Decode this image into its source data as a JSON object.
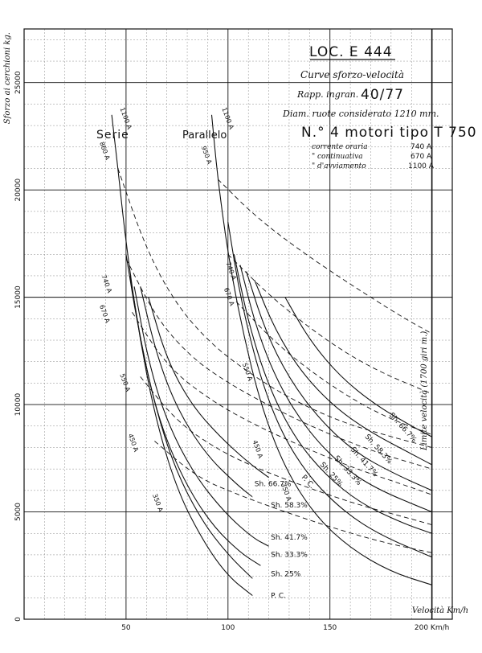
{
  "header": {
    "title": "LOC. E 444",
    "subtitle": "Curve sforzo-velocità",
    "ratio_label": "Rapp. ingran.",
    "ratio_value": "40/77",
    "wheel_label": "Diam. ruote considerato 1210 mm.",
    "motors_label": "N.° 4 motori tipo T 750",
    "currents": [
      {
        "label": "corrente oraria",
        "value": "740 A"
      },
      {
        "label": "\"  continuativa",
        "value": "670 A"
      },
      {
        "label": "\"  d'avviamento",
        "value": "1100 A"
      }
    ],
    "serie": "Serie",
    "parallelo": "Parallelo",
    "limit_label": "Limite velocità (1700 giri m.)"
  },
  "chart_data": {
    "type": "line",
    "ylabel": "Sforzo ai cerchioni kg.",
    "xlabel": "Velocità Km/h",
    "xlim": [
      0,
      210
    ],
    "ylim": [
      0,
      27500
    ],
    "xticks": [
      {
        "v": 50,
        "t": "50"
      },
      {
        "v": 100,
        "t": "100"
      },
      {
        "v": 150,
        "t": "150"
      },
      {
        "v": 200,
        "t": "200 Km/h"
      }
    ],
    "yticks": [
      {
        "v": 0,
        "t": "0"
      },
      {
        "v": 5000,
        "t": "5000"
      },
      {
        "v": 10000,
        "t": "10000"
      },
      {
        "v": 15000,
        "t": "15000"
      },
      {
        "v": 20000,
        "t": "20000"
      },
      {
        "v": 25000,
        "t": "25000"
      }
    ],
    "grid": true,
    "speed_limit": 200,
    "series_labels": [
      {
        "text": "Sh. 66.7%",
        "x": 113,
        "y": 6200
      },
      {
        "text": "Sh. 58.3%",
        "x": 121,
        "y": 5200
      },
      {
        "text": "Sh. 41.7%",
        "x": 121,
        "y": 3700
      },
      {
        "text": "Sh. 33.3%",
        "x": 121,
        "y": 2900
      },
      {
        "text": "Sh. 25%",
        "x": 121,
        "y": 2000
      },
      {
        "text": "P. C.",
        "x": 121,
        "y": 1000
      },
      {
        "text": "Sh. 66.7%",
        "x": 179,
        "y": 9500
      },
      {
        "text": "Sh. 58.3%",
        "x": 167,
        "y": 8500
      },
      {
        "text": "Sh. 41.7%",
        "x": 160,
        "y": 7900
      },
      {
        "text": "Sh. 33.3%",
        "x": 152,
        "y": 7500
      },
      {
        "text": "Sh. 25%",
        "x": 145,
        "y": 7200
      },
      {
        "text": "P. C.",
        "x": 136,
        "y": 6600
      }
    ],
    "current_labels": [
      {
        "text": "1100 A",
        "x": 47,
        "y": 23800
      },
      {
        "text": "860 A",
        "x": 37,
        "y": 22200
      },
      {
        "text": "740 A",
        "x": 38,
        "y": 16000
      },
      {
        "text": "670 A",
        "x": 37,
        "y": 14600
      },
      {
        "text": "550 A",
        "x": 47,
        "y": 11400
      },
      {
        "text": "450 A",
        "x": 51,
        "y": 8600
      },
      {
        "text": "350 A",
        "x": 63,
        "y": 5800
      },
      {
        "text": "1100 A",
        "x": 97,
        "y": 23800
      },
      {
        "text": "950 A",
        "x": 87,
        "y": 22000
      },
      {
        "text": "740 A",
        "x": 99,
        "y": 16600
      },
      {
        "text": "670 A",
        "x": 98,
        "y": 15400
      },
      {
        "text": "550 A",
        "x": 107,
        "y": 11900
      },
      {
        "text": "450 A",
        "x": 112,
        "y": 8300
      },
      {
        "text": "350 A",
        "x": 126,
        "y": 6300
      }
    ],
    "series": [
      {
        "group": "serie",
        "points": [
          [
            43,
            23500
          ],
          [
            46,
            21000
          ],
          [
            50,
            17500
          ],
          [
            56,
            13500
          ],
          [
            64,
            9500
          ],
          [
            75,
            6000
          ],
          [
            88,
            3600
          ],
          [
            100,
            2000
          ],
          [
            112,
            1100
          ]
        ]
      },
      {
        "group": "serie",
        "points": [
          [
            50,
            17000
          ],
          [
            56,
            13500
          ],
          [
            64,
            10000
          ],
          [
            74,
            7000
          ],
          [
            87,
            4600
          ],
          [
            100,
            3000
          ],
          [
            112,
            1900
          ]
        ]
      },
      {
        "group": "serie",
        "points": [
          [
            52,
            16000
          ],
          [
            58,
            12500
          ],
          [
            66,
            9300
          ],
          [
            78,
            6500
          ],
          [
            92,
            4400
          ],
          [
            106,
            3100
          ],
          [
            116,
            2500
          ]
        ]
      },
      {
        "group": "serie",
        "points": [
          [
            54,
            15500
          ],
          [
            61,
            12000
          ],
          [
            70,
            9200
          ],
          [
            83,
            6800
          ],
          [
            98,
            5000
          ],
          [
            112,
            3800
          ],
          [
            120,
            3400
          ]
        ]
      },
      {
        "group": "serie",
        "points": [
          [
            57,
            15500
          ],
          [
            65,
            12300
          ],
          [
            75,
            9800
          ],
          [
            89,
            7700
          ],
          [
            104,
            6300
          ],
          [
            112,
            5700
          ]
        ]
      },
      {
        "group": "serie",
        "points": [
          [
            61,
            15000
          ],
          [
            70,
            12100
          ],
          [
            82,
            10000
          ],
          [
            96,
            8500
          ],
          [
            110,
            7300
          ],
          [
            120,
            6600
          ]
        ]
      },
      {
        "group": "parallelo",
        "points": [
          [
            92,
            23500
          ],
          [
            95,
            20500
          ],
          [
            100,
            17000
          ],
          [
            107,
            13500
          ],
          [
            116,
            10000
          ],
          [
            128,
            7000
          ],
          [
            143,
            4800
          ],
          [
            160,
            3300
          ],
          [
            180,
            2200
          ],
          [
            200,
            1600
          ]
        ]
      },
      {
        "group": "parallelo",
        "points": [
          [
            100,
            18500
          ],
          [
            106,
            15000
          ],
          [
            115,
            11500
          ],
          [
            126,
            8700
          ],
          [
            140,
            6600
          ],
          [
            157,
            5000
          ],
          [
            175,
            3900
          ],
          [
            200,
            2900
          ]
        ]
      },
      {
        "group": "parallelo",
        "points": [
          [
            103,
            17000
          ],
          [
            110,
            13800
          ],
          [
            120,
            10800
          ],
          [
            133,
            8400
          ],
          [
            148,
            6700
          ],
          [
            165,
            5400
          ],
          [
            185,
            4500
          ],
          [
            200,
            4000
          ]
        ]
      },
      {
        "group": "parallelo",
        "points": [
          [
            106,
            16500
          ],
          [
            114,
            13500
          ],
          [
            125,
            10900
          ],
          [
            139,
            8800
          ],
          [
            155,
            7200
          ],
          [
            172,
            6100
          ],
          [
            200,
            5000
          ]
        ]
      },
      {
        "group": "parallelo",
        "points": [
          [
            109,
            16200
          ],
          [
            118,
            13500
          ],
          [
            130,
            11200
          ],
          [
            145,
            9300
          ],
          [
            162,
            7800
          ],
          [
            181,
            6800
          ],
          [
            200,
            6000
          ]
        ]
      },
      {
        "group": "parallelo",
        "points": [
          [
            113,
            15800
          ],
          [
            123,
            13500
          ],
          [
            136,
            11500
          ],
          [
            152,
            9900
          ],
          [
            170,
            8700
          ],
          [
            190,
            7700
          ],
          [
            200,
            7200
          ]
        ]
      },
      {
        "group": "parallelo",
        "points": [
          [
            128,
            15000
          ],
          [
            140,
            13000
          ],
          [
            155,
            11300
          ],
          [
            172,
            10000
          ],
          [
            190,
            9000
          ],
          [
            200,
            8500
          ]
        ]
      },
      {
        "group": "load",
        "dash": true,
        "points": [
          [
            46,
            21000
          ],
          [
            60,
            17200
          ],
          [
            75,
            14600
          ],
          [
            92,
            12800
          ],
          [
            110,
            11500
          ],
          [
            130,
            10300
          ],
          [
            155,
            9200
          ],
          [
            180,
            8500
          ],
          [
            200,
            8000
          ]
        ]
      },
      {
        "group": "load",
        "dash": true,
        "points": [
          [
            50,
            16800
          ],
          [
            65,
            14000
          ],
          [
            82,
            12200
          ],
          [
            100,
            11000
          ],
          [
            125,
            9700
          ],
          [
            150,
            8600
          ],
          [
            175,
            7700
          ],
          [
            200,
            7000
          ]
        ]
      },
      {
        "group": "load",
        "dash": true,
        "points": [
          [
            53,
            14300
          ],
          [
            70,
            11800
          ],
          [
            90,
            10300
          ],
          [
            110,
            9200
          ],
          [
            135,
            8100
          ],
          [
            160,
            7100
          ],
          [
            185,
            6300
          ],
          [
            200,
            5800
          ]
        ]
      },
      {
        "group": "load",
        "dash": true,
        "points": [
          [
            57,
            11300
          ],
          [
            75,
            9200
          ],
          [
            95,
            7900
          ],
          [
            115,
            7000
          ],
          [
            140,
            6100
          ],
          [
            165,
            5300
          ],
          [
            185,
            4800
          ],
          [
            200,
            4400
          ]
        ]
      },
      {
        "group": "load",
        "dash": true,
        "points": [
          [
            64,
            8300
          ],
          [
            85,
            6600
          ],
          [
            105,
            5800
          ],
          [
            125,
            5100
          ],
          [
            150,
            4300
          ],
          [
            175,
            3600
          ],
          [
            200,
            3100
          ]
        ]
      },
      {
        "group": "load",
        "dash": true,
        "points": [
          [
            95,
            20500
          ],
          [
            113,
            18800
          ],
          [
            135,
            17200
          ],
          [
            160,
            15600
          ],
          [
            185,
            14100
          ],
          [
            200,
            13300
          ]
        ]
      },
      {
        "group": "load",
        "dash": true,
        "points": [
          [
            100,
            17000
          ],
          [
            120,
            15100
          ],
          [
            145,
            13200
          ],
          [
            170,
            11700
          ],
          [
            200,
            10500
          ]
        ]
      },
      {
        "group": "load",
        "dash": true,
        "points": [
          [
            104,
            14800
          ],
          [
            125,
            12700
          ],
          [
            150,
            10900
          ],
          [
            175,
            9500
          ],
          [
            200,
            8600
          ]
        ]
      }
    ]
  }
}
